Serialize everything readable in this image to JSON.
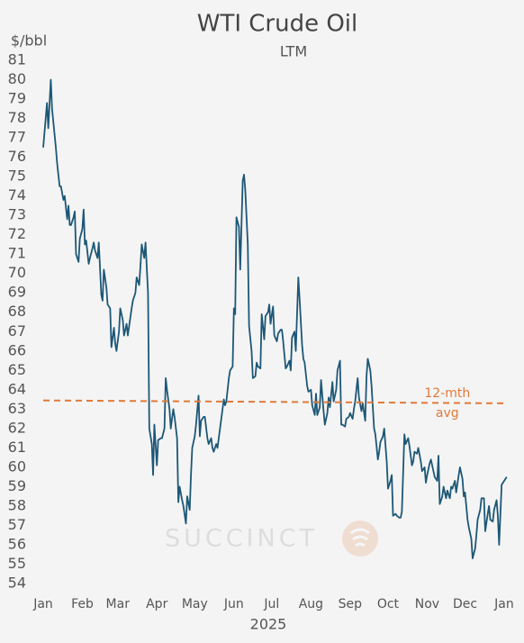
{
  "chart_data": {
    "type": "line",
    "title": "WTI Crude Oil",
    "subtitle": "LTM",
    "y_label": "$/bbl",
    "x_label": "2025",
    "watermark": "SUCCINCT",
    "xlim": [
      0,
      375
    ],
    "xticks": [
      {
        "value": 0,
        "label": "Jan"
      },
      {
        "value": 31,
        "label": "Feb"
      },
      {
        "value": 59,
        "label": "Mar"
      },
      {
        "value": 90,
        "label": "Apr"
      },
      {
        "value": 120,
        "label": "May"
      },
      {
        "value": 151,
        "label": "Jun"
      },
      {
        "value": 181,
        "label": "Jul"
      },
      {
        "value": 212,
        "label": "Aug"
      },
      {
        "value": 243,
        "label": "Sep"
      },
      {
        "value": 273,
        "label": "Oct"
      },
      {
        "value": 304,
        "label": "Nov"
      },
      {
        "value": 334,
        "label": "Dec"
      },
      {
        "value": 365,
        "label": "Jan"
      }
    ],
    "ylim": [
      54,
      81
    ],
    "yticks": [
      54,
      55,
      56,
      57,
      58,
      59,
      60,
      61,
      62,
      63,
      64,
      65,
      66,
      67,
      68,
      69,
      70,
      71,
      72,
      73,
      74,
      75,
      76,
      77,
      78,
      79,
      80,
      81
    ],
    "grid": false,
    "series": [
      {
        "color": "#1d5776",
        "x": [
          0,
          3,
          4,
          6,
          7,
          10,
          11,
          13,
          14,
          16,
          17,
          19,
          20,
          21,
          22,
          24,
          25,
          26,
          28,
          29,
          31,
          32,
          33,
          34,
          36,
          37,
          39,
          40,
          41,
          43,
          44,
          46,
          47,
          48,
          50,
          51,
          53,
          54,
          56,
          57,
          58,
          60,
          61,
          63,
          64,
          66,
          67,
          70,
          71,
          73,
          74,
          76,
          77,
          78,
          80,
          81,
          83,
          84,
          86,
          87,
          88,
          90,
          91,
          93,
          94,
          96,
          97,
          98,
          100,
          101,
          103,
          104,
          106,
          107,
          108,
          110,
          111,
          113,
          114,
          116,
          117,
          118,
          120,
          121,
          123,
          124,
          125,
          127,
          128,
          130,
          131,
          133,
          134,
          135,
          137,
          138,
          140,
          141,
          143,
          144,
          145,
          147,
          148,
          150,
          151,
          152,
          153,
          155,
          156,
          158,
          159,
          160,
          162,
          163,
          165,
          166,
          168,
          169,
          170,
          172,
          173,
          175,
          176,
          178,
          179,
          180,
          182,
          183,
          185,
          186,
          188,
          189,
          190,
          192,
          193,
          195,
          196,
          197,
          199,
          200,
          202,
          203,
          205,
          206,
          207,
          209,
          210,
          212,
          213,
          215,
          216,
          217,
          219,
          220,
          222,
          223,
          225,
          226,
          227,
          229,
          230,
          232,
          233,
          235,
          236,
          237,
          239,
          240,
          242,
          243,
          245,
          246,
          247,
          249,
          250,
          252,
          253,
          255,
          256,
          257,
          259,
          260,
          262,
          263,
          265,
          266,
          267,
          269,
          270,
          272,
          273,
          275,
          276,
          277,
          279,
          280,
          282,
          283,
          284,
          286,
          287,
          289,
          290,
          292,
          293,
          294,
          296,
          297,
          299,
          300,
          302,
          303,
          304,
          306,
          307,
          309,
          310,
          312,
          313,
          314,
          316,
          317,
          319,
          320,
          322,
          323,
          324,
          326,
          327,
          329,
          330,
          332,
          333,
          334,
          336,
          337,
          339,
          340,
          342,
          343,
          344,
          346,
          347,
          349,
          350,
          352,
          353,
          354,
          356,
          357,
          359,
          360,
          361,
          363,
          364,
          366,
          367
        ],
        "values": [
          76.5,
          78.8,
          77.5,
          80,
          78.5,
          76.5,
          75.7,
          74.5,
          74.5,
          73.8,
          74,
          72.8,
          73.5,
          72.5,
          72.5,
          72.9,
          73.2,
          71,
          70.6,
          71.8,
          72.3,
          73.3,
          71.5,
          71.7,
          70.5,
          70.8,
          71.3,
          71.6,
          71.2,
          70.8,
          71.6,
          68.9,
          68.6,
          70.2,
          69.3,
          68.4,
          68.2,
          66.2,
          67.2,
          66.4,
          66,
          67,
          68.2,
          67.6,
          66.8,
          67.4,
          66.8,
          68.2,
          68.6,
          69,
          69.8,
          69.4,
          70.4,
          71.5,
          70.8,
          71.6,
          69,
          62,
          61.2,
          59.6,
          62.2,
          60.1,
          61.4,
          61.5,
          61.5,
          62,
          64.6,
          64,
          63,
          62,
          63,
          62.6,
          61.5,
          58.2,
          59,
          58.3,
          58,
          57.1,
          58.5,
          57.8,
          59.6,
          61,
          61.6,
          62.2,
          63.7,
          61.6,
          62.4,
          62.6,
          62.6,
          61.5,
          61.2,
          61.5,
          61,
          60.8,
          61.2,
          61,
          62,
          62.5,
          63.5,
          63.2,
          63.4,
          64.6,
          65,
          65.2,
          68.2,
          67.9,
          72.9,
          72.4,
          70.2,
          74.8,
          75.1,
          74.3,
          71.5,
          67.3,
          66,
          64.6,
          64.7,
          65.4,
          65.2,
          65.1,
          67.9,
          66.6,
          67.8,
          68,
          68.4,
          67.4,
          68.3,
          66.8,
          66.5,
          66.9,
          67.1,
          67.1,
          66.5,
          65.1,
          65.2,
          65.5,
          65,
          66.7,
          67,
          66,
          69.8,
          68.7,
          66.3,
          65.6,
          65.4,
          64.2,
          63.9,
          64,
          63.2,
          62.7,
          63.8,
          62.7,
          63.1,
          64.5,
          62.9,
          62.2,
          62.8,
          63.6,
          63.1,
          64.4,
          63.4,
          64,
          65,
          65.5,
          62.2,
          62.2,
          62.1,
          62.5,
          62.6,
          62.8,
          62.5,
          63,
          63.4,
          64.6,
          63.6,
          62.9,
          63.3,
          62.4,
          64.7,
          65.6,
          65,
          64.2,
          62,
          61.7,
          60.4,
          60.8,
          61.3,
          61.6,
          62,
          60.3,
          58.9,
          59.3,
          59.6,
          57.5,
          57.6,
          57.5,
          57.4,
          57.4,
          57.7,
          61.7,
          61.2,
          61.5,
          61.1,
          60.1,
          60.3,
          60.8,
          60.7,
          61,
          60.3,
          59.8,
          60,
          59.2,
          59.6,
          60.2,
          60.4,
          59.8,
          59.5,
          59.3,
          60.6,
          58.1,
          58.5,
          59,
          58.4,
          58.8,
          58.4,
          59,
          58.9,
          59.3,
          58.7,
          59.6,
          60,
          59.4,
          58.5,
          58.7,
          57.3,
          56.9,
          56.3,
          55.3,
          55.8,
          56.5,
          57.3,
          57.8,
          58.4,
          58.4,
          56.7,
          57.6,
          58,
          57.3,
          57.2,
          57.8,
          58.3,
          57.5,
          56,
          59.1,
          59.2,
          59.4,
          59.5
        ]
      },
      {
        "color": "#e07a3a",
        "dashed": true,
        "label_lines": [
          "12-mth",
          "avg"
        ],
        "x": [
          0,
          367
        ],
        "values": [
          63.45,
          63.3
        ]
      }
    ]
  }
}
